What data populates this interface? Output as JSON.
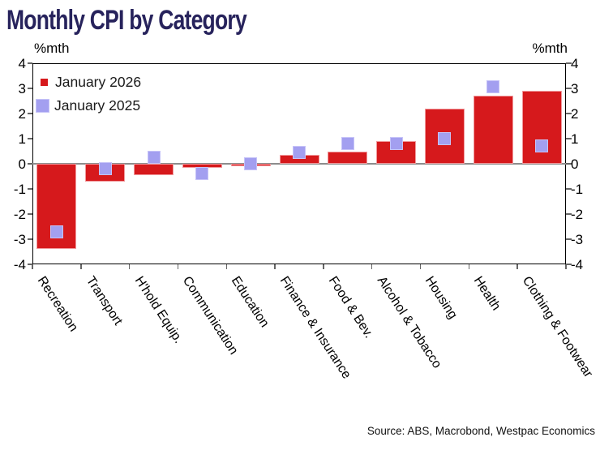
{
  "title": "Monthly CPI by Category",
  "colors": {
    "title": "#27235c",
    "bar_fill": "#d6191c",
    "bar_edge": "#f0999c",
    "marker_fill": "#a39ff0",
    "marker_edge": "#c6c3f8",
    "zero_line": "#8c8c8c",
    "axis": "#000000"
  },
  "source": "Source: ABS, Macrobond, Westpac Economics",
  "chart_data": {
    "type": "bar",
    "title": "Monthly CPI by Category",
    "categories": [
      "Recreation",
      "Transport",
      "H'hold Equip.",
      "Communication",
      "Education",
      "Finance & Insurance",
      "Food & Bev.",
      "Alcohol & Tobacco",
      "Housing",
      "Health",
      "Clothing & Footwear"
    ],
    "series": [
      {
        "name": "January 2026",
        "type": "bar",
        "color": "#d6191c",
        "values": [
          -3.4,
          -0.7,
          -0.45,
          -0.15,
          -0.1,
          0.35,
          0.5,
          0.9,
          2.2,
          2.7,
          2.9
        ]
      },
      {
        "name": "January 2025",
        "type": "square-marker",
        "color": "#a39ff0",
        "values": [
          -2.7,
          -0.2,
          0.25,
          -0.4,
          0.0,
          0.45,
          0.8,
          0.8,
          1.0,
          3.05,
          0.7
        ]
      }
    ],
    "ylim": [
      -4,
      4
    ],
    "yticks": [
      4,
      3,
      2,
      1,
      0,
      -1,
      -2,
      -3,
      -4
    ],
    "ylabel_left": "%mth",
    "ylabel_right": "%mth",
    "grid": false,
    "legend_position": "top-left",
    "source": "Source: ABS, Macrobond, Westpac Economics"
  }
}
